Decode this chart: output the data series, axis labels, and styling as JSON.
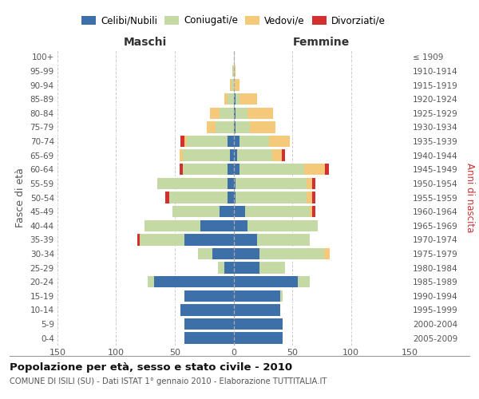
{
  "age_groups": [
    "0-4",
    "5-9",
    "10-14",
    "15-19",
    "20-24",
    "25-29",
    "30-34",
    "35-39",
    "40-44",
    "45-49",
    "50-54",
    "55-59",
    "60-64",
    "65-69",
    "70-74",
    "75-79",
    "80-84",
    "85-89",
    "90-94",
    "95-99",
    "100+"
  ],
  "birth_years": [
    "2005-2009",
    "2000-2004",
    "1995-1999",
    "1990-1994",
    "1985-1989",
    "1980-1984",
    "1975-1979",
    "1970-1974",
    "1965-1969",
    "1960-1964",
    "1955-1959",
    "1950-1954",
    "1945-1949",
    "1940-1944",
    "1935-1939",
    "1930-1934",
    "1925-1929",
    "1920-1924",
    "1915-1919",
    "1910-1914",
    "≤ 1909"
  ],
  "male": {
    "celibi": [
      42,
      42,
      45,
      42,
      68,
      8,
      18,
      42,
      28,
      12,
      5,
      5,
      5,
      3,
      5,
      0,
      0,
      0,
      0,
      0,
      0
    ],
    "coniugati": [
      0,
      0,
      0,
      0,
      5,
      5,
      12,
      38,
      48,
      40,
      50,
      60,
      38,
      40,
      35,
      15,
      12,
      5,
      2,
      1,
      0
    ],
    "vedovi": [
      0,
      0,
      0,
      0,
      0,
      0,
      0,
      0,
      0,
      0,
      0,
      0,
      0,
      3,
      2,
      8,
      8,
      3,
      1,
      0,
      0
    ],
    "divorziati": [
      0,
      0,
      0,
      0,
      0,
      0,
      0,
      2,
      0,
      0,
      3,
      0,
      3,
      0,
      3,
      0,
      0,
      0,
      0,
      0,
      0
    ]
  },
  "female": {
    "nubili": [
      42,
      42,
      40,
      40,
      55,
      22,
      22,
      20,
      12,
      10,
      2,
      2,
      5,
      3,
      5,
      2,
      2,
      2,
      0,
      0,
      0
    ],
    "coniugate": [
      0,
      0,
      0,
      2,
      10,
      22,
      55,
      45,
      60,
      55,
      60,
      60,
      55,
      30,
      25,
      12,
      10,
      3,
      0,
      0,
      0
    ],
    "vedove": [
      0,
      0,
      0,
      0,
      0,
      0,
      5,
      0,
      0,
      2,
      5,
      5,
      18,
      8,
      18,
      22,
      22,
      15,
      5,
      2,
      0
    ],
    "divorziate": [
      0,
      0,
      0,
      0,
      0,
      0,
      0,
      0,
      0,
      3,
      3,
      3,
      3,
      3,
      0,
      0,
      0,
      0,
      0,
      0,
      0
    ]
  },
  "color_celibi": "#3d6fa8",
  "color_coniugati": "#c5d9a5",
  "color_vedovi": "#f5c97a",
  "color_divorziati": "#d32f2f",
  "xlim": 150,
  "title_main": "Popolazione per età, sesso e stato civile - 2010",
  "title_sub": "COMUNE DI ISILI (SU) - Dati ISTAT 1° gennaio 2010 - Elaborazione TUTTITALIA.IT",
  "ylabel_left": "Fasce di età",
  "ylabel_right": "Anni di nascita",
  "label_maschi": "Maschi",
  "label_femmine": "Femmine",
  "bg_color": "#ffffff",
  "grid_color": "#cccccc"
}
